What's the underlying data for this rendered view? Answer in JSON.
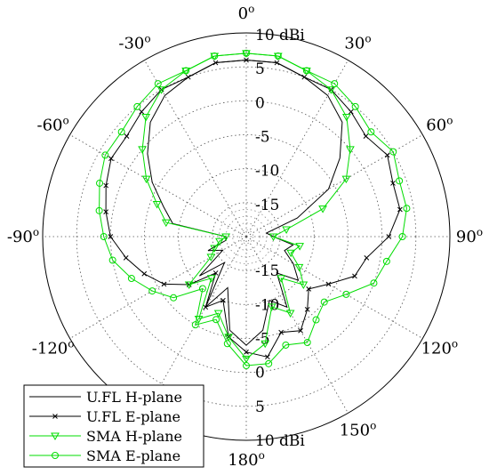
{
  "chart_data": {
    "type": "polar-line",
    "unit_label": "dBi",
    "r_range": [
      -20,
      10
    ],
    "ring_values": [
      10,
      5,
      0,
      -5,
      -10,
      -15
    ],
    "ring_labels_upper": [
      "10 dBi",
      "5",
      "0",
      "-5",
      "-10",
      "-15"
    ],
    "ring_labels_lower": [
      "-15",
      "-10",
      "-5",
      "0",
      "5",
      "10 dBi"
    ],
    "angle_labels": [
      {
        "deg": 0,
        "base": "0",
        "sup": "o"
      },
      {
        "deg": 30,
        "base": "30",
        "sup": "o"
      },
      {
        "deg": 60,
        "base": "60",
        "sup": "o"
      },
      {
        "deg": 90,
        "base": "90",
        "sup": "o"
      },
      {
        "deg": 120,
        "base": "120",
        "sup": "o"
      },
      {
        "deg": 150,
        "base": "150",
        "sup": "o"
      },
      {
        "deg": 180,
        "base": "180",
        "sup": "o"
      },
      {
        "deg": -150,
        "base": "",
        "sup": ""
      },
      {
        "deg": -120,
        "base": "-120",
        "sup": "o"
      },
      {
        "deg": -90,
        "base": "-90",
        "sup": "o"
      },
      {
        "deg": -60,
        "base": "-60",
        "sup": "o"
      },
      {
        "deg": -30,
        "base": "-30",
        "sup": "o"
      }
    ],
    "legend_position": "bottom-left",
    "series": [
      {
        "name": "U.FL H-plane",
        "color": "#000000",
        "marker": "none",
        "points": [
          [
            -180,
            -4
          ],
          [
            -170,
            -6
          ],
          [
            -160,
            -12
          ],
          [
            -150,
            -8
          ],
          [
            -140,
            -15
          ],
          [
            -130,
            -11
          ],
          [
            -120,
            -16
          ],
          [
            -110,
            -14
          ],
          [
            -100,
            -17
          ],
          [
            -90,
            -17
          ],
          [
            -80,
            -9
          ],
          [
            -70,
            -7
          ],
          [
            -60,
            -4
          ],
          [
            -50,
            -1
          ],
          [
            -40,
            2
          ],
          [
            -30,
            4
          ],
          [
            -20,
            5
          ],
          [
            -10,
            6
          ],
          [
            0,
            6
          ],
          [
            10,
            6
          ],
          [
            20,
            5
          ],
          [
            30,
            4
          ],
          [
            40,
            2
          ],
          [
            50,
            -2
          ],
          [
            60,
            -6
          ],
          [
            70,
            -12
          ],
          [
            80,
            -17
          ],
          [
            90,
            -16
          ],
          [
            100,
            -13
          ],
          [
            110,
            -14
          ],
          [
            120,
            -12
          ],
          [
            130,
            -10
          ],
          [
            140,
            -13
          ],
          [
            150,
            -8
          ],
          [
            160,
            -10
          ],
          [
            170,
            -6
          ]
        ]
      },
      {
        "name": "U.FL E-plane",
        "color": "#000000",
        "marker": "x",
        "points": [
          [
            -180,
            -3
          ],
          [
            -170,
            -5
          ],
          [
            -160,
            -10
          ],
          [
            -150,
            -8
          ],
          [
            -140,
            -13
          ],
          [
            -130,
            -9
          ],
          [
            -120,
            -6
          ],
          [
            -110,
            -4
          ],
          [
            -100,
            -2
          ],
          [
            -90,
            0
          ],
          [
            -80,
            1
          ],
          [
            -70,
            2
          ],
          [
            -60,
            3
          ],
          [
            -50,
            3
          ],
          [
            -40,
            4
          ],
          [
            -30,
            5
          ],
          [
            -20,
            5
          ],
          [
            -10,
            6
          ],
          [
            0,
            6
          ],
          [
            10,
            6
          ],
          [
            20,
            5
          ],
          [
            30,
            5
          ],
          [
            40,
            4
          ],
          [
            50,
            3
          ],
          [
            60,
            4
          ],
          [
            70,
            3
          ],
          [
            80,
            3
          ],
          [
            90,
            1
          ],
          [
            100,
            -2
          ],
          [
            110,
            -3
          ],
          [
            120,
            -6
          ],
          [
            130,
            -8
          ],
          [
            140,
            -6
          ],
          [
            150,
            -4
          ],
          [
            160,
            -5
          ],
          [
            170,
            -2
          ]
        ]
      },
      {
        "name": "SMA H-plane",
        "color": "#00dd00",
        "marker": "triangle",
        "points": [
          [
            -180,
            -2
          ],
          [
            -170,
            -5
          ],
          [
            -160,
            -8
          ],
          [
            -150,
            -6
          ],
          [
            -140,
            -12
          ],
          [
            -130,
            -9
          ],
          [
            -120,
            -14
          ],
          [
            -110,
            -15
          ],
          [
            -100,
            -16
          ],
          [
            -90,
            -17
          ],
          [
            -80,
            -8
          ],
          [
            -70,
            -6
          ],
          [
            -60,
            -3
          ],
          [
            -50,
            0
          ],
          [
            -40,
            3
          ],
          [
            -30,
            5
          ],
          [
            -20,
            6
          ],
          [
            -10,
            7
          ],
          [
            0,
            7
          ],
          [
            10,
            7
          ],
          [
            20,
            6
          ],
          [
            30,
            5
          ],
          [
            40,
            3
          ],
          [
            50,
            0
          ],
          [
            60,
            -3
          ],
          [
            70,
            -8
          ],
          [
            80,
            -14
          ],
          [
            90,
            -16
          ],
          [
            100,
            -12
          ],
          [
            110,
            -13
          ],
          [
            120,
            -11
          ],
          [
            130,
            -9
          ],
          [
            140,
            -12
          ],
          [
            150,
            -7
          ],
          [
            160,
            -9
          ],
          [
            170,
            -4
          ]
        ]
      },
      {
        "name": "SMA E-plane",
        "color": "#00dd00",
        "marker": "circle",
        "points": [
          [
            -180,
            -1
          ],
          [
            -170,
            -4
          ],
          [
            -160,
            -7
          ],
          [
            -150,
            -5
          ],
          [
            -140,
            -10
          ],
          [
            -130,
            -6
          ],
          [
            -120,
            -4
          ],
          [
            -110,
            -2
          ],
          [
            -100,
            0
          ],
          [
            -90,
            1
          ],
          [
            -80,
            2
          ],
          [
            -70,
            3
          ],
          [
            -60,
            4
          ],
          [
            -50,
            4
          ],
          [
            -40,
            5
          ],
          [
            -30,
            6
          ],
          [
            -20,
            6
          ],
          [
            -10,
            7
          ],
          [
            0,
            7
          ],
          [
            10,
            7
          ],
          [
            20,
            6
          ],
          [
            30,
            6
          ],
          [
            40,
            5
          ],
          [
            50,
            4
          ],
          [
            60,
            5
          ],
          [
            70,
            4
          ],
          [
            80,
            4
          ],
          [
            90,
            3
          ],
          [
            100,
            1
          ],
          [
            110,
            0
          ],
          [
            120,
            -3
          ],
          [
            130,
            -5
          ],
          [
            140,
            -4
          ],
          [
            150,
            -2
          ],
          [
            160,
            -3
          ],
          [
            170,
            -1
          ]
        ]
      }
    ]
  }
}
